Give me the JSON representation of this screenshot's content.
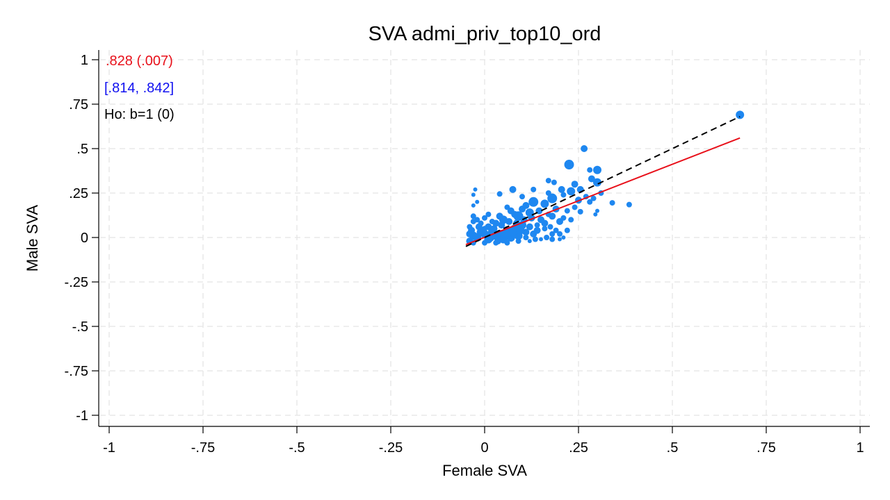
{
  "chart_data": {
    "type": "scatter",
    "title": "SVA admi_priv_top10_ord",
    "xlabel": "Female SVA",
    "ylabel": "Male SVA",
    "xlim": [
      -1,
      1
    ],
    "ylim": [
      -1,
      1
    ],
    "x_ticks": [
      -1,
      -0.75,
      -0.5,
      -0.25,
      0,
      0.25,
      0.5,
      0.75,
      1
    ],
    "x_tick_labels": [
      "-1",
      "-.75",
      "-.5",
      "-.25",
      "0",
      ".25",
      ".5",
      ".75",
      "1"
    ],
    "y_ticks": [
      -1,
      -0.75,
      -0.5,
      -0.25,
      0,
      0.25,
      0.5,
      0.75,
      1
    ],
    "y_tick_labels": [
      "-1",
      "-.75",
      "-.5",
      "-.25",
      "0",
      ".25",
      ".5",
      ".75",
      "1"
    ],
    "grid": true,
    "annotations": [
      {
        "text": ".828 (.007)",
        "color": "#e8101a"
      },
      {
        "text": "[.814, .842]",
        "color": "#1010f0"
      },
      {
        "text": "Ho: b=1 (0)",
        "color": "#000000"
      }
    ],
    "fit_line": {
      "color": "#e8101a",
      "x": [
        -0.05,
        0.68
      ],
      "y": [
        -0.04,
        0.56
      ]
    },
    "reference_line": {
      "color": "#000000",
      "style": "dashed",
      "x": [
        -0.05,
        0.68
      ],
      "y": [
        -0.05,
        0.68
      ]
    },
    "marker_color": "#1e87f0",
    "series": [
      {
        "points": [
          [
            0.68,
            0.69,
            6
          ],
          [
            0.265,
            0.5,
            5
          ],
          [
            0.225,
            0.41,
            7
          ],
          [
            0.3,
            0.38,
            6
          ],
          [
            0.28,
            0.38,
            4
          ],
          [
            0.3,
            0.31,
            6
          ],
          [
            0.285,
            0.33,
            5
          ],
          [
            0.385,
            0.185,
            4
          ],
          [
            0.34,
            0.195,
            4
          ],
          [
            0.17,
            0.32,
            4
          ],
          [
            0.185,
            0.31,
            4
          ],
          [
            0.13,
            0.27,
            4
          ],
          [
            0.205,
            0.27,
            5
          ],
          [
            0.1,
            0.23,
            4
          ],
          [
            0.075,
            0.27,
            5
          ],
          [
            0.04,
            0.245,
            4
          ],
          [
            -0.025,
            0.27,
            3
          ],
          [
            -0.03,
            0.24,
            3
          ],
          [
            -0.03,
            0.18,
            3
          ],
          [
            -0.02,
            0.2,
            3
          ],
          [
            0.24,
            0.3,
            5
          ],
          [
            0.255,
            0.27,
            5
          ],
          [
            0.23,
            0.26,
            6
          ],
          [
            0.21,
            0.24,
            4
          ],
          [
            0.18,
            0.22,
            7
          ],
          [
            0.17,
            0.25,
            4
          ],
          [
            0.16,
            0.19,
            6
          ],
          [
            0.13,
            0.2,
            7
          ],
          [
            0.12,
            0.14,
            6
          ],
          [
            0.11,
            0.18,
            5
          ],
          [
            0.1,
            0.16,
            5
          ],
          [
            0.09,
            0.12,
            7
          ],
          [
            0.08,
            0.13,
            5
          ],
          [
            0.07,
            0.15,
            5
          ],
          [
            0.06,
            0.17,
            4
          ],
          [
            0.05,
            0.1,
            6
          ],
          [
            0.04,
            0.12,
            5
          ],
          [
            0.03,
            0.08,
            5
          ],
          [
            0.02,
            0.09,
            4
          ],
          [
            0.01,
            0.06,
            5
          ],
          [
            0.0,
            0.05,
            4
          ],
          [
            -0.01,
            0.08,
            4
          ],
          [
            -0.02,
            0.1,
            4
          ],
          [
            -0.03,
            0.12,
            4
          ],
          [
            -0.04,
            0.06,
            4
          ],
          [
            0.15,
            0.1,
            5
          ],
          [
            0.18,
            0.12,
            5
          ],
          [
            0.2,
            0.09,
            5
          ],
          [
            0.22,
            0.04,
            4
          ],
          [
            0.2,
            0.02,
            4
          ],
          [
            0.18,
            -0.01,
            4
          ],
          [
            0.16,
            0.05,
            4
          ],
          [
            0.14,
            0.07,
            4
          ],
          [
            0.12,
            0.06,
            5
          ],
          [
            0.25,
            0.21,
            5
          ],
          [
            0.27,
            0.23,
            4
          ],
          [
            0.29,
            0.22,
            4
          ],
          [
            0.31,
            0.25,
            4
          ],
          [
            0.28,
            0.2,
            4
          ],
          [
            0.3,
            0.15,
            3
          ],
          [
            0.295,
            0.13,
            3
          ],
          [
            0.22,
            0.15,
            4
          ],
          [
            0.24,
            0.17,
            4
          ],
          [
            0.19,
            0.16,
            5
          ],
          [
            0.17,
            0.13,
            4
          ],
          [
            0.145,
            0.15,
            5
          ],
          [
            0.255,
            0.145,
            4
          ],
          [
            0.21,
            0.11,
            4
          ],
          [
            0.23,
            0.1,
            4
          ],
          [
            0.2,
            -0.01,
            3
          ],
          [
            0.21,
            0.0,
            3
          ],
          [
            0.15,
            -0.01,
            3
          ],
          [
            0.12,
            -0.02,
            3
          ],
          [
            0.09,
            -0.02,
            4
          ],
          [
            0.06,
            -0.03,
            4
          ],
          [
            0.03,
            -0.03,
            4
          ],
          [
            0.0,
            -0.03,
            4
          ],
          [
            -0.03,
            -0.03,
            4
          ],
          [
            -0.04,
            -0.02,
            5
          ],
          [
            -0.04,
            0.02,
            5
          ],
          [
            -0.035,
            0.04,
            5
          ],
          [
            -0.02,
            0.0,
            6
          ],
          [
            0.0,
            0.02,
            6
          ],
          [
            0.02,
            0.03,
            6
          ],
          [
            0.04,
            0.02,
            6
          ],
          [
            0.06,
            0.04,
            6
          ],
          [
            0.08,
            0.05,
            6
          ],
          [
            0.1,
            0.07,
            6
          ],
          [
            0.11,
            0.03,
            5
          ],
          [
            0.13,
            0.02,
            5
          ],
          [
            0.09,
            0.01,
            6
          ],
          [
            0.07,
            0.0,
            6
          ],
          [
            0.05,
            -0.01,
            6
          ],
          [
            0.03,
            0.01,
            6
          ],
          [
            0.01,
            -0.01,
            6
          ],
          [
            -0.01,
            0.03,
            6
          ],
          [
            -0.03,
            0.01,
            6
          ],
          [
            0.025,
            0.05,
            5
          ],
          [
            0.045,
            0.07,
            5
          ],
          [
            0.065,
            0.09,
            5
          ],
          [
            0.085,
            0.08,
            5
          ],
          [
            0.105,
            0.1,
            5
          ],
          [
            0.125,
            0.11,
            5
          ],
          [
            0.14,
            0.04,
            5
          ],
          [
            0.16,
            0.08,
            5
          ],
          [
            0.175,
            0.06,
            4
          ],
          [
            0.19,
            0.04,
            4
          ],
          [
            0.015,
            0.0,
            6
          ],
          [
            0.035,
            -0.02,
            5
          ],
          [
            0.055,
            0.02,
            6
          ],
          [
            0.075,
            0.03,
            6
          ],
          [
            0.095,
            0.04,
            6
          ],
          [
            -0.015,
            0.06,
            5
          ],
          [
            -0.03,
            0.09,
            4
          ],
          [
            0.0,
            0.11,
            4
          ],
          [
            0.01,
            0.13,
            4
          ],
          [
            0.11,
            0.0,
            4
          ],
          [
            0.135,
            -0.01,
            4
          ],
          [
            0.165,
            0.0,
            4
          ],
          [
            0.18,
            0.02,
            4
          ]
        ]
      }
    ]
  }
}
